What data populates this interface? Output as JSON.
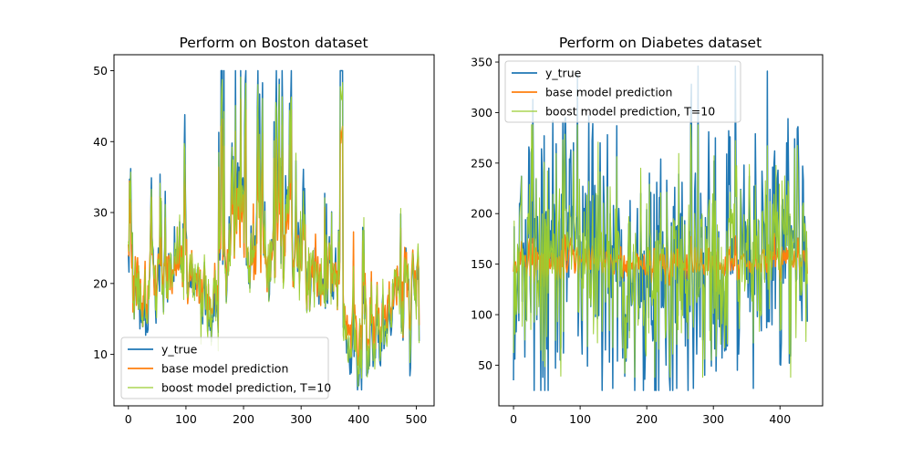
{
  "chart_data": [
    {
      "type": "line",
      "title": "Perform on Boston dataset",
      "xlabel": "",
      "ylabel": "",
      "xlim": [
        -25,
        531
      ],
      "ylim": [
        2.75,
        52.25
      ],
      "xticks": [
        0,
        100,
        200,
        300,
        400,
        500
      ],
      "yticks": [
        10,
        20,
        30,
        40,
        50
      ],
      "n_points": 506,
      "seed": 7,
      "legend_loc": "lower left",
      "series": [
        {
          "name": "y_true",
          "color": "#1f77b4",
          "linewidth": 1.5,
          "values": [
            24,
            21.6,
            34.7,
            33.4,
            36.2,
            28.7,
            22.9,
            27.1,
            16.5,
            18.9,
            15,
            18.9,
            21.7,
            20.4,
            18.2,
            19.9,
            23.1,
            17.5,
            20.2,
            18.2,
            13.6,
            19.6,
            15.2,
            14.5,
            15.6,
            13.9,
            16.6,
            14.8,
            18.4,
            21,
            12.7,
            14.5,
            13.2,
            13.1,
            13.5,
            18.9,
            20,
            21,
            24.7,
            30.8,
            34.9,
            26.6,
            25.3,
            24.7,
            21.2,
            19.3,
            20,
            16.6,
            14.4,
            19.4,
            19.7,
            20.5,
            25,
            23.4,
            18.9,
            35.4,
            24.7,
            31.6,
            23.3,
            19.6,
            18.7,
            16,
            22.2,
            25,
            33,
            23.5,
            19.4,
            22,
            17.4,
            20.9,
            24.2,
            21.7,
            22.8,
            23.4,
            24.1,
            21.4,
            20,
            20.8,
            21.2,
            20.3,
            28,
            23.9,
            24.8,
            22.9,
            23.9,
            26.6,
            22.5,
            22.2,
            23.6,
            28.7,
            22.6,
            22,
            22.9,
            25,
            20.6,
            28.4,
            21.4,
            38.7,
            43.8,
            33.2,
            27.5,
            26.5,
            18.6,
            19.3,
            20.1,
            19.5,
            19.5,
            20.4,
            19.8,
            19.4,
            21.7,
            22.8,
            18.8,
            18.7,
            18.5,
            18.3,
            21.2,
            19.2,
            20.4,
            19.3,
            22,
            20.3,
            20.5,
            17.3,
            18.8,
            21.4,
            15.7,
            16.2,
            18,
            14.3,
            19.2,
            19.6,
            23,
            18.4,
            15.6,
            18.1,
            17.4,
            17.1,
            13.3,
            17.8,
            14,
            14.4,
            13.4,
            15.6,
            11.8,
            13.8,
            15.6,
            14.6,
            17.8,
            15.4,
            21.5,
            19.6,
            15.3,
            19.4,
            17,
            15.6,
            13.1,
            41.3,
            24.3,
            23.3,
            27,
            50,
            50,
            50,
            22.7,
            25,
            50,
            23.8,
            23.8,
            22.3,
            17.4,
            19.1,
            23.1,
            23.6,
            22.6,
            29.4,
            23.2,
            24.6,
            29.9,
            37.2,
            39.8,
            36.2,
            37.9,
            32.5,
            26.4,
            29.6,
            50,
            32,
            29.8,
            34.9,
            37,
            30.5,
            36.4,
            31.1,
            29.1,
            50,
            33.3,
            30.3,
            34.6,
            34.9,
            32.9,
            24.1,
            42.3,
            48.5,
            50,
            22.6,
            24.4,
            22.5,
            24.4,
            20,
            21.7,
            19.3,
            22.4,
            28.1,
            23.7,
            25,
            23.3,
            28.7,
            21.5,
            23,
            26.7,
            21.7,
            27.5,
            30.1,
            44.8,
            50,
            37.6,
            31.6,
            46.7,
            31.5,
            24.3,
            31.7,
            41.7,
            48.3,
            29,
            24,
            25.1,
            31.5,
            23.7,
            23.3,
            22,
            20.1,
            22.2,
            23.7,
            17.6,
            18.5,
            24.3,
            20.5,
            24.5,
            26.2,
            24.4,
            24.8,
            29.6,
            42.8,
            21.9,
            20.9,
            44,
            50,
            36,
            30.1,
            33.8,
            43.1,
            48.8,
            31,
            36.5,
            22.8,
            30.7,
            50,
            43.5,
            20.7,
            21.1,
            25.2,
            24.4,
            35.2,
            32.4,
            32,
            33.2,
            33.1,
            29.1,
            35.1,
            45.4,
            35.4,
            46,
            50,
            32.2,
            22,
            20.1,
            23.2,
            22.3,
            24.8,
            28.5,
            37.3,
            27.9,
            23.9,
            21.7,
            28.6,
            27.1,
            20.3,
            22.5,
            29,
            24.8,
            22,
            26.4,
            33.1,
            36.1,
            28.4,
            33.4,
            28.2,
            22.8,
            20.3,
            16.1,
            22.1,
            19.4,
            21.6,
            23.8,
            16.2,
            17.8,
            19.8,
            23.1,
            21,
            23.8,
            23.1,
            20.4,
            18.5,
            25,
            24.6,
            23,
            22.2,
            19.3,
            22.6,
            19.8,
            17.1,
            19.4,
            22.2,
            20.7,
            21.1,
            19.5,
            18.5,
            20.6,
            19,
            18.7,
            32.7,
            16.5,
            23.9,
            31.2,
            17.5,
            17.2,
            23.1,
            24.5,
            26.6,
            22.9,
            24.1,
            18.6,
            30.1,
            18.2,
            20.6,
            17.8,
            21.7,
            22.7,
            22.6,
            25,
            19.9,
            20.8,
            16.8,
            21.9,
            27.5,
            21.9,
            23.1,
            50,
            50,
            50,
            50,
            50,
            13.8,
            13.8,
            15,
            13.9,
            13.3,
            13.1,
            10.2,
            10.4,
            10.9,
            11.3,
            12.3,
            8.8,
            7.2,
            10.5,
            7.4,
            10.2,
            11.5,
            15.1,
            23.2,
            9.7,
            13.8,
            12.7,
            13.1,
            12.5,
            8.5,
            5,
            6.3,
            5.6,
            7.2,
            12.1,
            8.3,
            8.5,
            5,
            11.9,
            27.9,
            17.2,
            27.5,
            15,
            17.2,
            17.9,
            16.3,
            7,
            7.2,
            7.5,
            10.4,
            8.8,
            8.4,
            16.7,
            14.2,
            20.8,
            13.4,
            11.7,
            8.3,
            10.2,
            10.9,
            11,
            9.5,
            14.5,
            14.1,
            16.1,
            14.3,
            11.7,
            13.4,
            9.6,
            8.7,
            8.4,
            12.8,
            10.5,
            17.1,
            18.4,
            15.4,
            10.8,
            11.8,
            14.9,
            12.6,
            14.1,
            13,
            13.4,
            15.2,
            16.1,
            17.8,
            14.9,
            14.1,
            12.7,
            13.5,
            14.9,
            20,
            16.4,
            17.7,
            19.5,
            20.2,
            21.4,
            19.9,
            19,
            19.1,
            19.1,
            20.1,
            19.9,
            19.6,
            23.2,
            29.8,
            13.8,
            13.3,
            16.7,
            12,
            14.6,
            21.4,
            23,
            23.7,
            25,
            21.8,
            20.6,
            21.2,
            19.1,
            20.6,
            15.2,
            7,
            8.1,
            13.6,
            20.1,
            21.8,
            24.5,
            23.1,
            19.7,
            18.3,
            21.2,
            17.5,
            16.8,
            22.4,
            20.6,
            23.9,
            22,
            11.9
          ]
        },
        {
          "name": "base model prediction",
          "color": "#ff7f0e",
          "linewidth": 1.5
        },
        {
          "name": "boost model prediction, T=10",
          "color": "#9acd32",
          "linewidth": 1.0
        }
      ]
    },
    {
      "type": "line",
      "title": "Perform on Diabetes dataset",
      "xlabel": "",
      "ylabel": "",
      "xlim": [
        -22,
        464
      ],
      "ylim": [
        9.75,
        357.25
      ],
      "xticks": [
        0,
        100,
        200,
        300,
        400
      ],
      "yticks": [
        50,
        100,
        150,
        200,
        250,
        300,
        350
      ],
      "n_points": 442,
      "seed": 13,
      "legend_loc": "upper left",
      "series": [
        {
          "name": "y_true",
          "color": "#1f77b4",
          "linewidth": 1.5
        },
        {
          "name": "base model prediction",
          "color": "#ff7f0e",
          "linewidth": 1.5
        },
        {
          "name": "boost model prediction, T=10",
          "color": "#9acd32",
          "linewidth": 1.0
        }
      ]
    }
  ]
}
